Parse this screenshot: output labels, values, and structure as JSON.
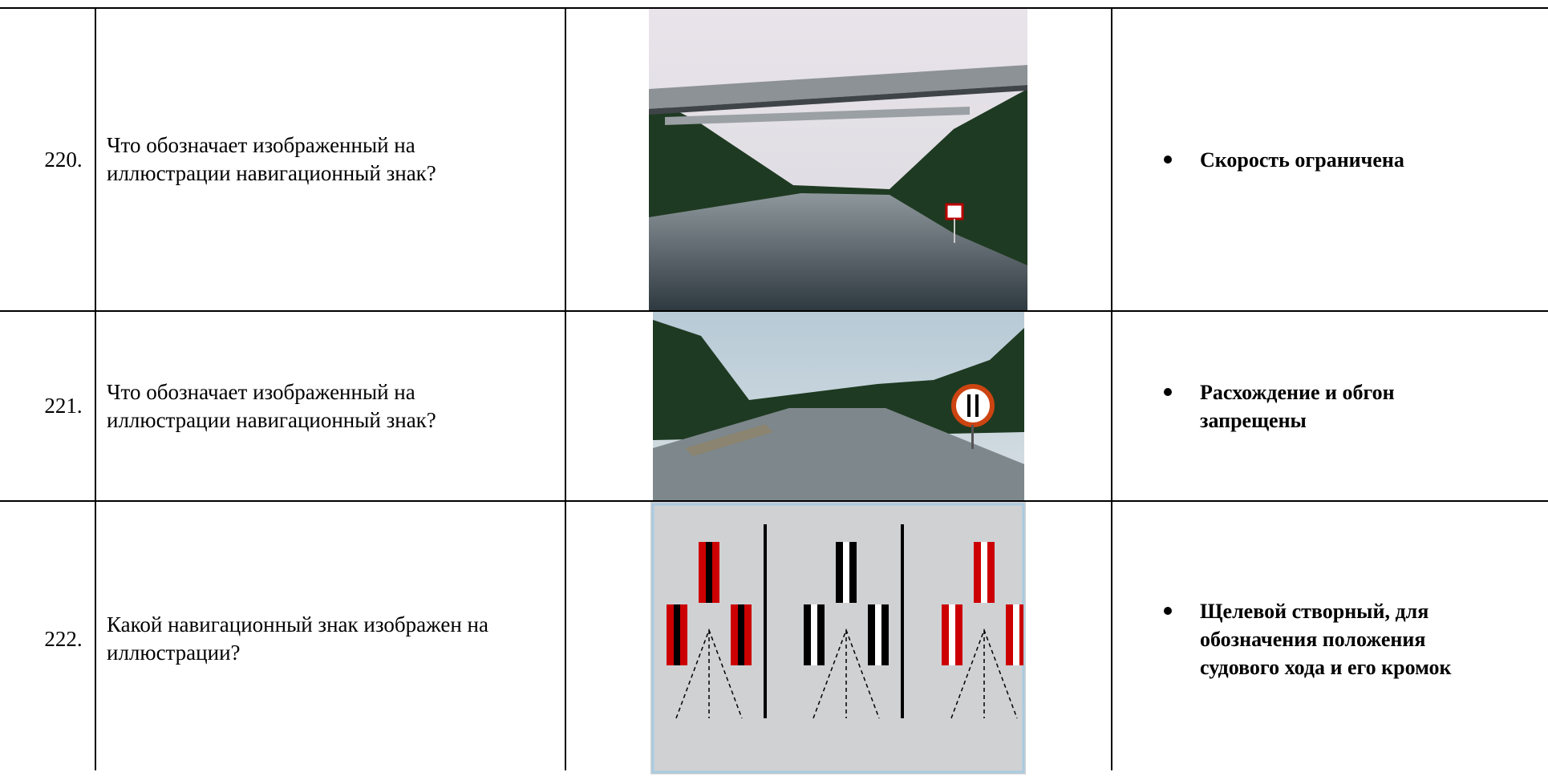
{
  "table": {
    "rows": [
      {
        "number": "220.",
        "question": [
          "Что обозначает изображенный на",
          "иллюстрации навигационный знак?"
        ],
        "answer": [
          "Скорость ограничена"
        ]
      },
      {
        "number": "221.",
        "question": [
          "Что обозначает изображенный на",
          "иллюстрации навигационный знак?"
        ],
        "answer": [
          "Расхождение и обгон",
          "запрещены"
        ]
      },
      {
        "number": "222.",
        "question": [
          "Какой навигационный знак изображен на",
          "иллюстрации?"
        ],
        "answer": [
          "Щелевой створный, для",
          "обозначения положения",
          "судового хода и его кромок"
        ]
      }
    ]
  }
}
